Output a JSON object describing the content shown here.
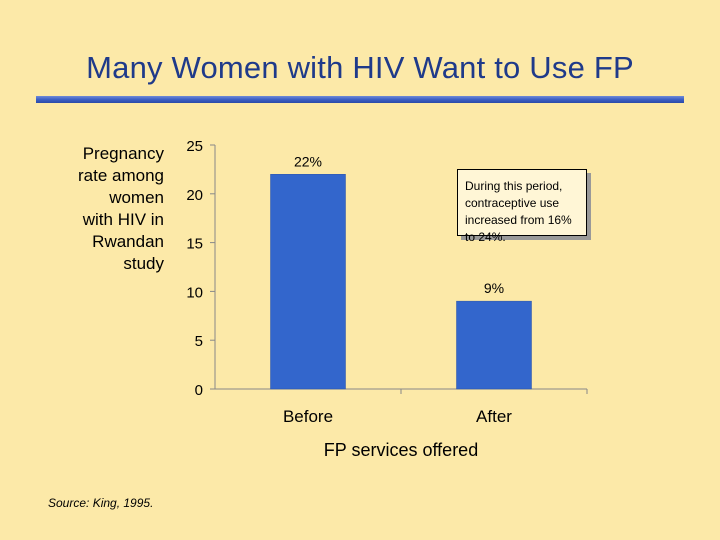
{
  "slide": {
    "title": "Many Women with HIV Want to Use FP",
    "source": "Source: King, 1995.",
    "annotation": "During this period, contraceptive use increased from 16% to 24%."
  },
  "chart_data": {
    "type": "bar",
    "title": "",
    "ylabel_lines": [
      "Pregnancy",
      "rate among",
      "women",
      "with HIV in",
      "Rwandan",
      "study"
    ],
    "xlabel": "FP services offered",
    "categories": [
      "Before",
      "After"
    ],
    "values": [
      22,
      9
    ],
    "data_labels": [
      "22%",
      "9%"
    ],
    "ylim": [
      0,
      25
    ],
    "yticks": [
      0,
      5,
      10,
      15,
      20,
      25
    ],
    "bar_color": "#3366CC",
    "grid": false
  }
}
